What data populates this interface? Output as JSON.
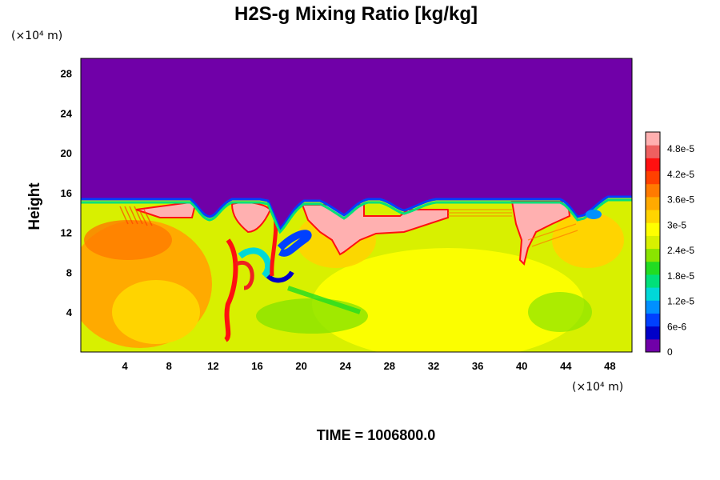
{
  "chart_data": {
    "type": "heatmap",
    "title": "H2S-g Mixing Ratio [kg/kg]",
    "ylabel": "Height",
    "y_unit": "(×10⁴ m)",
    "x_unit": "(×10⁴ m)",
    "x_ticks": [
      "4",
      "8",
      "12",
      "16",
      "20",
      "24",
      "28",
      "32",
      "36",
      "40",
      "44",
      "48"
    ],
    "y_ticks": [
      "4",
      "8",
      "12",
      "16",
      "20",
      "24",
      "28"
    ],
    "xlim": [
      0,
      50
    ],
    "ylim": [
      0,
      29.5
    ],
    "colorbar": {
      "labels": [
        "0",
        "6e-6",
        "1.2e-5",
        "1.8e-5",
        "2.4e-5",
        "3e-5",
        "3.6e-5",
        "4.2e-5",
        "4.8e-5"
      ],
      "colors": [
        "#7000a8",
        "#0000c8",
        "#0040ff",
        "#0090ff",
        "#00d8d8",
        "#00e07a",
        "#22dc22",
        "#8ae400",
        "#d8f000",
        "#ffff00",
        "#ffd400",
        "#ffaa00",
        "#ff7a00",
        "#ff4000",
        "#ff1010",
        "#ee6060",
        "#ffb0b0"
      ],
      "range": [
        0,
        5.2e-05
      ]
    },
    "time_label": "TIME = 1006800.0",
    "background_value": 0,
    "interface_height": 15.5
  }
}
